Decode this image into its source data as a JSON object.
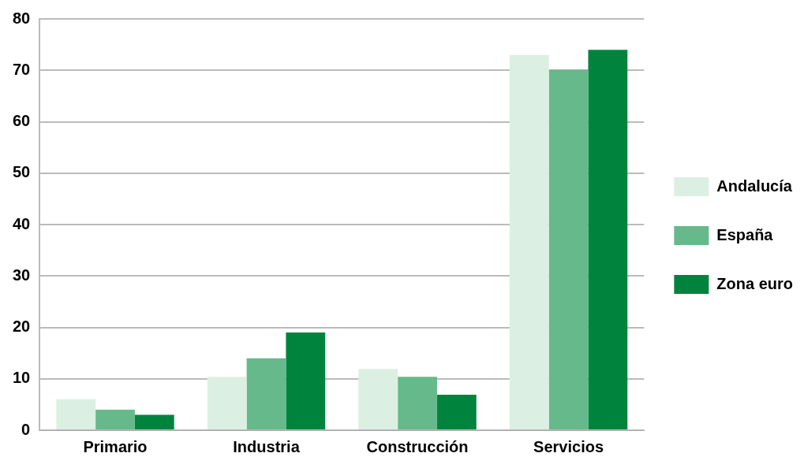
{
  "chart_data": {
    "type": "bar",
    "categories": [
      "Primario",
      "Industria",
      "Construcción",
      "Servicios"
    ],
    "series": [
      {
        "name": "Andalucía",
        "color": "#dcefe3",
        "values": [
          6,
          10.4,
          11.9,
          73
        ]
      },
      {
        "name": "España",
        "color": "#66b98a",
        "values": [
          4,
          14,
          10.4,
          70.1
        ]
      },
      {
        "name": "Zona euro",
        "color": "#00843d",
        "values": [
          3,
          19,
          6.9,
          74
        ]
      }
    ],
    "ylim": [
      0,
      80
    ],
    "yticks": [
      0,
      10,
      20,
      30,
      40,
      50,
      60,
      70,
      80
    ],
    "grid": "y",
    "legend": "right"
  }
}
